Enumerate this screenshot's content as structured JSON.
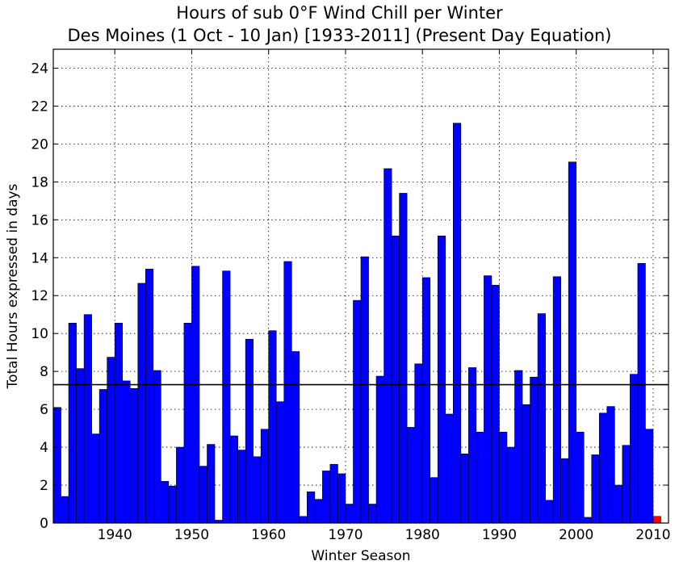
{
  "chart_data": {
    "type": "bar",
    "title": "Hours of sub 0°F Wind Chill per Winter",
    "subtitle": "Des Moines (1 Oct - 10 Jan) [1933-2011] (Present Day Equation)",
    "xlabel": "Winter Season",
    "ylabel": "Total Hours expressed in days",
    "xlim": [
      1932,
      2012
    ],
    "ylim": [
      0,
      25
    ],
    "x_ticks": [
      1940,
      1950,
      1960,
      1970,
      1980,
      1990,
      2000,
      2010
    ],
    "y_ticks": [
      0,
      2,
      4,
      6,
      8,
      10,
      12,
      14,
      16,
      18,
      20,
      22,
      24
    ],
    "grid": true,
    "average_line": 7.3,
    "bar_color": "#0000ff",
    "highlight_color": "#ff0000",
    "series": [
      {
        "x": [
          1933,
          1934,
          1935,
          1936,
          1937,
          1938,
          1939,
          1940,
          1941,
          1942,
          1943,
          1944,
          1945,
          1946,
          1947,
          1948,
          1949,
          1950,
          1951,
          1952,
          1953,
          1954,
          1955,
          1956,
          1957,
          1958,
          1959,
          1960,
          1961,
          1962,
          1963,
          1964,
          1965,
          1966,
          1967,
          1968,
          1969,
          1970,
          1971,
          1972,
          1973,
          1974,
          1975,
          1976,
          1977,
          1978,
          1979,
          1980,
          1981,
          1982,
          1983,
          1984,
          1985,
          1986,
          1987,
          1988,
          1989,
          1990,
          1991,
          1992,
          1993,
          1994,
          1995,
          1996,
          1997,
          1998,
          1999,
          2000,
          2001,
          2002,
          2003,
          2004,
          2005,
          2006,
          2007,
          2008,
          2009,
          2010,
          2011
        ],
        "values": [
          6.1,
          1.4,
          10.55,
          8.15,
          11.0,
          4.7,
          7.05,
          8.75,
          10.55,
          7.5,
          7.1,
          12.65,
          13.4,
          8.05,
          2.2,
          1.95,
          4.0,
          10.55,
          13.55,
          3.0,
          4.15,
          0.15,
          13.3,
          4.6,
          3.85,
          9.7,
          3.5,
          4.95,
          10.15,
          6.4,
          13.8,
          9.05,
          0.35,
          1.65,
          1.25,
          2.75,
          3.1,
          2.6,
          1.0,
          11.75,
          14.05,
          1.0,
          7.75,
          18.7,
          15.15,
          17.4,
          5.05,
          8.4,
          12.95,
          2.4,
          15.15,
          5.75,
          21.1,
          3.65,
          8.2,
          4.8,
          13.05,
          12.55,
          4.8,
          4.0,
          8.05,
          6.25,
          7.7,
          11.05,
          1.2,
          13.0,
          3.4,
          19.05,
          4.8,
          0.3,
          3.6,
          5.8,
          6.15,
          2.0,
          4.1,
          7.85,
          13.7,
          4.95,
          0.35
        ]
      }
    ]
  }
}
